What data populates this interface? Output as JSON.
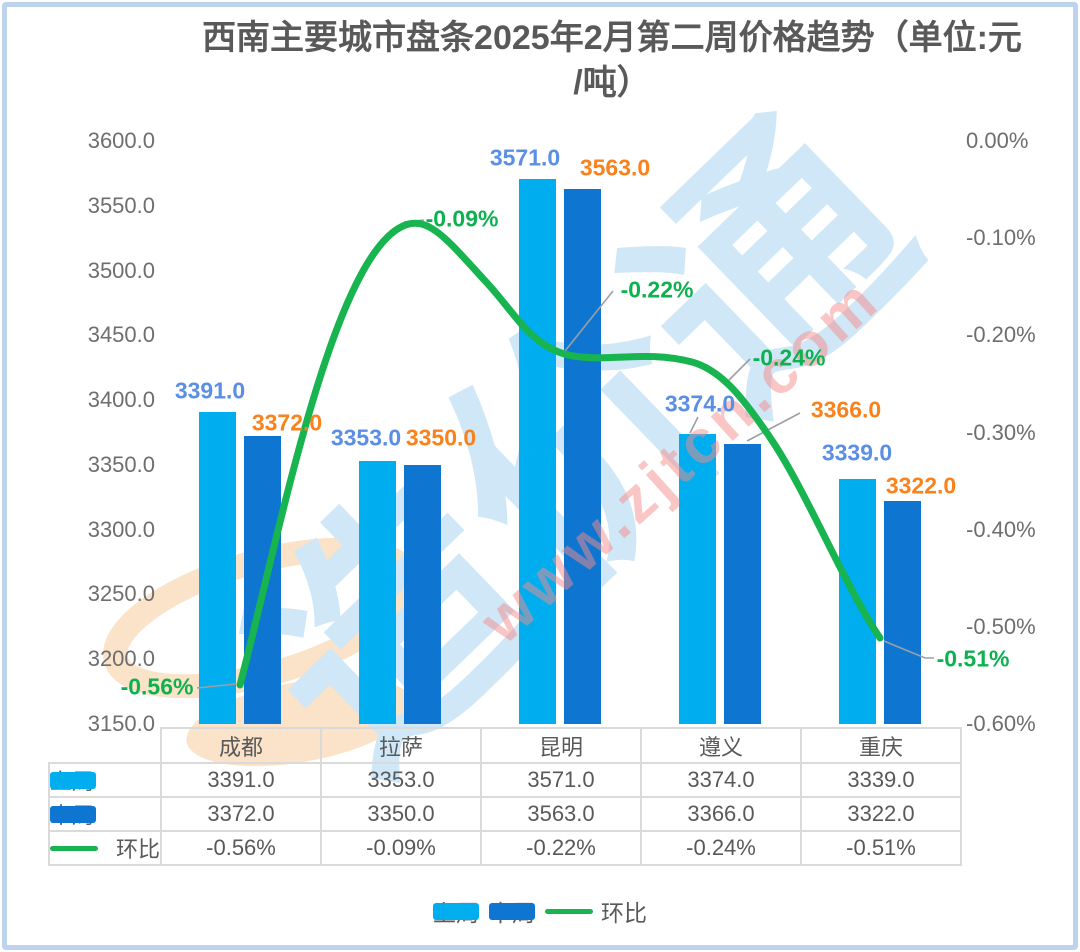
{
  "title": {
    "line1": "西南主要城市盘条2025年2月第二周价格趋势（单位:元",
    "line2": "/吨）"
  },
  "chart_data": {
    "type": "combo-bar-line",
    "categories": [
      "成都",
      "拉萨",
      "昆明",
      "遵义",
      "重庆"
    ],
    "series": [
      {
        "name": "上周",
        "type": "bar",
        "axis": "left",
        "values": [
          3391.0,
          3353.0,
          3571.0,
          3374.0,
          3339.0
        ],
        "labels": [
          "3391.0",
          "3353.0",
          "3571.0",
          "3374.0",
          "3339.0"
        ]
      },
      {
        "name": "本周",
        "type": "bar",
        "axis": "left",
        "values": [
          3372.0,
          3350.0,
          3563.0,
          3366.0,
          3322.0
        ],
        "labels": [
          "3372.0",
          "3350.0",
          "3563.0",
          "3366.0",
          "3322.0"
        ]
      },
      {
        "name": "环比",
        "type": "line",
        "axis": "right",
        "values": [
          -0.56,
          -0.09,
          -0.22,
          -0.24,
          -0.51
        ],
        "labels": [
          "-0.56%",
          "-0.09%",
          "-0.22%",
          "-0.24%",
          "-0.51%"
        ]
      }
    ],
    "left_axis": {
      "min": 3150.0,
      "max": 3600.0,
      "tick_step": 50,
      "ticks": [
        "3600.0",
        "3550.0",
        "3500.0",
        "3450.0",
        "3400.0",
        "3350.0",
        "3300.0",
        "3250.0",
        "3200.0",
        "3150.0"
      ]
    },
    "right_axis": {
      "min": -0.6,
      "max": 0.0,
      "tick_step": 0.1,
      "ticks": [
        "0.00%",
        "-0.10%",
        "-0.20%",
        "-0.30%",
        "-0.40%",
        "-0.50%",
        "-0.60%"
      ]
    },
    "grid": false,
    "legend_position": "bottom",
    "colors": {
      "bar_last_week": "#00adee",
      "bar_this_week": "#0e76d1",
      "line_mom": "#17b450",
      "label_blue": "#5b8fe4",
      "label_orange": "#f9821d",
      "label_green": "#0db14f"
    }
  },
  "table": {
    "columns": [
      "成都",
      "拉萨",
      "昆明",
      "遵义",
      "重庆"
    ],
    "rows": [
      {
        "label": "上周",
        "swatch": "bar_last_week",
        "values": [
          "3391.0",
          "3353.0",
          "3571.0",
          "3374.0",
          "3339.0"
        ]
      },
      {
        "label": "本周",
        "swatch": "bar_this_week",
        "values": [
          "3372.0",
          "3350.0",
          "3563.0",
          "3366.0",
          "3322.0"
        ]
      },
      {
        "label": "环比",
        "swatch": "line_mom",
        "values": [
          "-0.56%",
          "-0.09%",
          "-0.22%",
          "-0.24%",
          "-0.51%"
        ]
      }
    ]
  },
  "legend": {
    "items": [
      "上周",
      "本周",
      "环比"
    ]
  },
  "watermark": {
    "brand": "造价通",
    "url": "www.zjtcn.com"
  }
}
